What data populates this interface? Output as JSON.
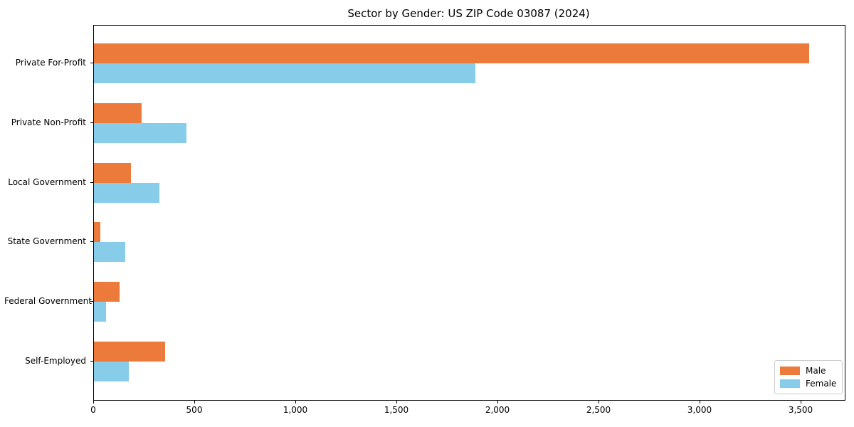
{
  "chart_data": {
    "type": "bar",
    "orientation": "horizontal",
    "title": "Sector by Gender: US ZIP Code 03087 (2024)",
    "categories": [
      "Private For-Profit",
      "Private Non-Profit",
      "Local Government",
      "State Government",
      "Federal Government",
      "Self-Employed"
    ],
    "series": [
      {
        "name": "Male",
        "color": "#EB7A3B",
        "values": [
          3538,
          237,
          184,
          32,
          126,
          352
        ]
      },
      {
        "name": "Female",
        "color": "#87CDE9",
        "values": [
          1889,
          458,
          323,
          155,
          61,
          173
        ]
      }
    ],
    "xlabel": "",
    "ylabel": "",
    "xlim": [
      0,
      3715
    ],
    "x_tick_values": [
      0,
      500,
      1000,
      1500,
      2000,
      2500,
      3000,
      3500
    ],
    "x_tick_labels": [
      "0",
      "500",
      "1,000",
      "1,500",
      "2,000",
      "2,500",
      "3,000",
      "3,500"
    ],
    "grid": false,
    "legend": {
      "position": "lower right",
      "entries": [
        "Male",
        "Female"
      ]
    }
  },
  "colors": {
    "male": "#EB7A3B",
    "female": "#87CDE9",
    "axis": "#000000",
    "legend_border": "#cccccc",
    "background": "#ffffff"
  }
}
